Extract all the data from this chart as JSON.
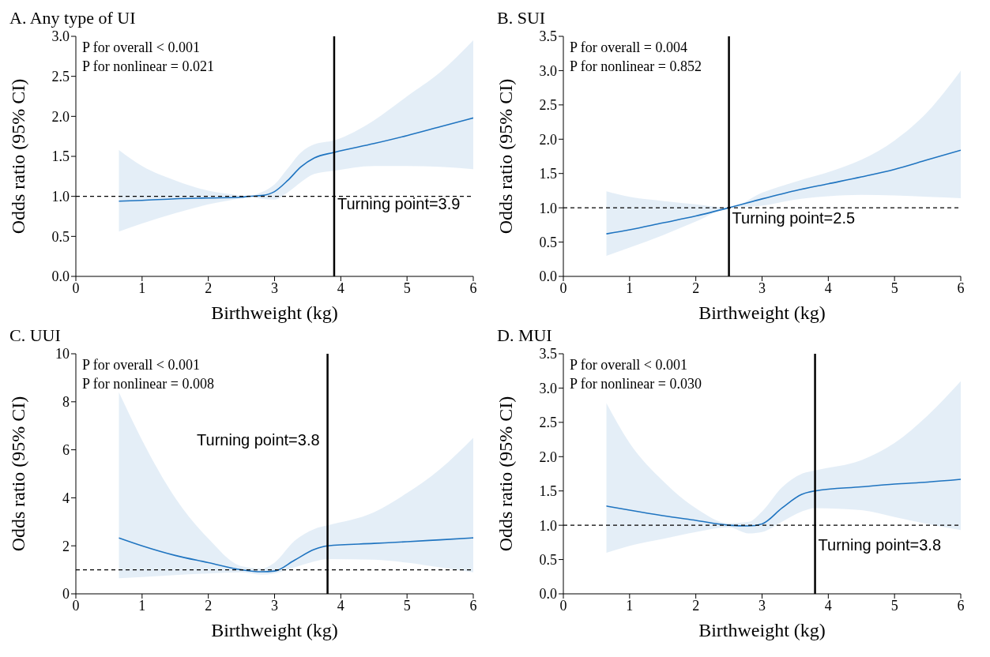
{
  "chart_data": [
    {
      "type": "line",
      "title": "A. Any type of UI",
      "xlabel": "Birthweight (kg)",
      "ylabel": "Odds ratio (95% CI)",
      "xlim": [
        0,
        6
      ],
      "xticks": [
        0,
        1,
        2,
        3,
        4,
        5,
        6
      ],
      "ylim": [
        0,
        3
      ],
      "yticks": [
        {
          "value": 0,
          "label": "0.0"
        },
        {
          "value": 0.5,
          "label": "0.5"
        },
        {
          "value": 1,
          "label": "1.0"
        },
        {
          "value": 1.5,
          "label": "1.5"
        },
        {
          "value": 2,
          "label": "2.0"
        },
        {
          "value": 2.5,
          "label": "2.5"
        },
        {
          "value": 3,
          "label": "3.0"
        }
      ],
      "annotations": [
        "P for overall < 0.001",
        "P for nonlinear = 0.021"
      ],
      "ref_lines": [
        {
          "axis": "y",
          "value": 1,
          "line_style": "dashed",
          "color": "#000000"
        },
        {
          "axis": "x",
          "value": 3.9,
          "label": "Turning point=3.9",
          "line_style": "solid",
          "color": "#000000"
        }
      ],
      "series": [
        {
          "color": "#1f74c0",
          "x": [
            0.65,
            1,
            1.5,
            2,
            2.5,
            2.6,
            2.8,
            3,
            3.2,
            3.4,
            3.6,
            3.9,
            4.5,
            5,
            5.5,
            6
          ],
          "values": [
            0.94,
            0.95,
            0.97,
            0.98,
            0.99,
            1.0,
            1.01,
            1.06,
            1.2,
            1.37,
            1.48,
            1.55,
            1.66,
            1.76,
            1.87,
            1.98
          ],
          "lower": [
            0.56,
            0.66,
            0.79,
            0.9,
            0.98,
            1.0,
            0.97,
            0.96,
            1.05,
            1.18,
            1.28,
            1.32,
            1.38,
            1.38,
            1.37,
            1.34
          ],
          "upper": [
            1.58,
            1.38,
            1.2,
            1.07,
            1.01,
            1.0,
            1.05,
            1.15,
            1.35,
            1.55,
            1.65,
            1.7,
            1.95,
            2.25,
            2.55,
            2.95
          ]
        }
      ]
    },
    {
      "type": "line",
      "title": "B. SUI",
      "xlabel": "Birthweight (kg)",
      "ylabel": "Odds ratio (95% CI)",
      "xlim": [
        0,
        6
      ],
      "xticks": [
        0,
        1,
        2,
        3,
        4,
        5,
        6
      ],
      "ylim": [
        0,
        3.5
      ],
      "yticks": [
        {
          "value": 0,
          "label": "0.0"
        },
        {
          "value": 0.5,
          "label": "0.5"
        },
        {
          "value": 1,
          "label": "1.0"
        },
        {
          "value": 1.5,
          "label": "1.5"
        },
        {
          "value": 2,
          "label": "2.0"
        },
        {
          "value": 2.5,
          "label": "2.5"
        },
        {
          "value": 3,
          "label": "3.0"
        },
        {
          "value": 3.5,
          "label": "3.5"
        }
      ],
      "annotations": [
        "P for overall = 0.004",
        "P for nonlinear = 0.852"
      ],
      "ref_lines": [
        {
          "axis": "y",
          "value": 1,
          "line_style": "dashed",
          "color": "#000000"
        },
        {
          "axis": "x",
          "value": 2.5,
          "label": "Turning point=2.5",
          "line_style": "solid",
          "color": "#000000"
        }
      ],
      "series": [
        {
          "color": "#1f74c0",
          "x": [
            0.65,
            1,
            1.5,
            2,
            2.5,
            3,
            3.5,
            4,
            4.5,
            5,
            5.5,
            6
          ],
          "values": [
            0.62,
            0.68,
            0.78,
            0.88,
            1.0,
            1.13,
            1.25,
            1.35,
            1.45,
            1.56,
            1.7,
            1.84
          ],
          "lower": [
            0.3,
            0.42,
            0.6,
            0.8,
            1.0,
            1.03,
            1.12,
            1.17,
            1.19,
            1.18,
            1.16,
            1.14
          ],
          "upper": [
            1.24,
            1.16,
            1.1,
            1.05,
            1.0,
            1.22,
            1.38,
            1.52,
            1.7,
            1.98,
            2.4,
            3.0
          ]
        }
      ]
    },
    {
      "type": "line",
      "title": "C. UUI",
      "xlabel": "Birthweight (kg)",
      "ylabel": "Odds ratio (95% CI)",
      "xlim": [
        0,
        6
      ],
      "xticks": [
        0,
        1,
        2,
        3,
        4,
        5,
        6
      ],
      "ylim": [
        0,
        10
      ],
      "yticks": [
        0,
        2,
        4,
        6,
        8,
        10
      ],
      "annotations": [
        "P for overall < 0.001",
        "P for nonlinear = 0.008"
      ],
      "ref_lines": [
        {
          "axis": "y",
          "value": 1,
          "line_style": "dashed",
          "color": "#000000"
        },
        {
          "axis": "x",
          "value": 3.8,
          "label": "Turning point=3.8",
          "line_style": "solid",
          "color": "#000000"
        }
      ],
      "series": [
        {
          "color": "#1f74c0",
          "x": [
            0.65,
            1,
            1.5,
            2,
            2.5,
            2.8,
            3,
            3.3,
            3.6,
            3.8,
            4.5,
            5,
            5.5,
            6
          ],
          "values": [
            2.33,
            2.0,
            1.6,
            1.3,
            1.0,
            0.92,
            0.95,
            1.4,
            1.85,
            2.0,
            2.1,
            2.17,
            2.25,
            2.33
          ],
          "lower": [
            0.65,
            0.7,
            0.78,
            0.85,
            0.9,
            0.8,
            0.85,
            1.1,
            1.35,
            1.45,
            1.42,
            1.3,
            1.1,
            0.9
          ],
          "upper": [
            8.4,
            6.4,
            4.0,
            2.3,
            1.15,
            1.05,
            1.3,
            2.2,
            2.7,
            2.85,
            3.4,
            4.2,
            5.2,
            6.5
          ]
        }
      ]
    },
    {
      "type": "line",
      "title": "D. MUI",
      "xlabel": "Birthweight (kg)",
      "ylabel": "Odds ratio (95% CI)",
      "xlim": [
        0,
        6
      ],
      "xticks": [
        0,
        1,
        2,
        3,
        4,
        5,
        6
      ],
      "ylim": [
        0,
        3.5
      ],
      "yticks": [
        {
          "value": 0,
          "label": "0.0"
        },
        {
          "value": 0.5,
          "label": "0.5"
        },
        {
          "value": 1,
          "label": "1.0"
        },
        {
          "value": 1.5,
          "label": "1.5"
        },
        {
          "value": 2,
          "label": "2.0"
        },
        {
          "value": 2.5,
          "label": "2.5"
        },
        {
          "value": 3,
          "label": "3.0"
        },
        {
          "value": 3.5,
          "label": "3.5"
        }
      ],
      "annotations": [
        "P for overall < 0.001",
        "P for nonlinear = 0.030"
      ],
      "ref_lines": [
        {
          "axis": "y",
          "value": 1,
          "line_style": "dashed",
          "color": "#000000"
        },
        {
          "axis": "x",
          "value": 3.8,
          "label": "Turning point=3.8",
          "line_style": "solid",
          "color": "#000000"
        }
      ],
      "series": [
        {
          "color": "#1f74c0",
          "x": [
            0.65,
            1,
            1.5,
            2,
            2.5,
            2.8,
            3,
            3.3,
            3.6,
            3.8,
            4.5,
            5,
            5.5,
            6
          ],
          "values": [
            1.28,
            1.22,
            1.14,
            1.07,
            1.0,
            0.99,
            1.02,
            1.25,
            1.45,
            1.5,
            1.56,
            1.6,
            1.63,
            1.67
          ],
          "lower": [
            0.6,
            0.7,
            0.8,
            0.9,
            0.97,
            0.88,
            0.9,
            1.05,
            1.2,
            1.25,
            1.22,
            1.12,
            1.02,
            0.93
          ],
          "upper": [
            2.78,
            2.2,
            1.65,
            1.25,
            1.03,
            1.05,
            1.2,
            1.55,
            1.75,
            1.8,
            1.95,
            2.2,
            2.6,
            3.1
          ]
        }
      ]
    }
  ]
}
